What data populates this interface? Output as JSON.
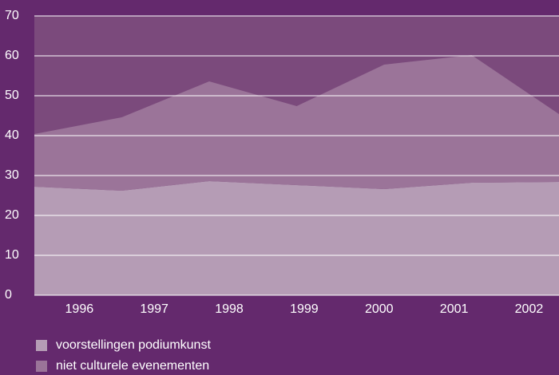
{
  "chart_data": {
    "type": "stacked-area",
    "categories": [
      "1996",
      "1997",
      "1998",
      "1999",
      "2000",
      "2001",
      "2002"
    ],
    "series": [
      {
        "name": "voorstellingen podiumkunst",
        "color": "#b59cb5",
        "values": [
          27.2,
          26.2,
          28.6,
          27.6,
          26.6,
          28.2,
          28.4
        ]
      },
      {
        "name": "niet culturele evenementen",
        "color": "#9b7499",
        "values": [
          13.2,
          18.4,
          25.0,
          19.8,
          31.2,
          32.0,
          17.0
        ]
      }
    ],
    "ylim": [
      0,
      70
    ],
    "yticks": [
      0,
      10,
      20,
      30,
      40,
      50,
      60,
      70
    ],
    "grid": true
  }
}
